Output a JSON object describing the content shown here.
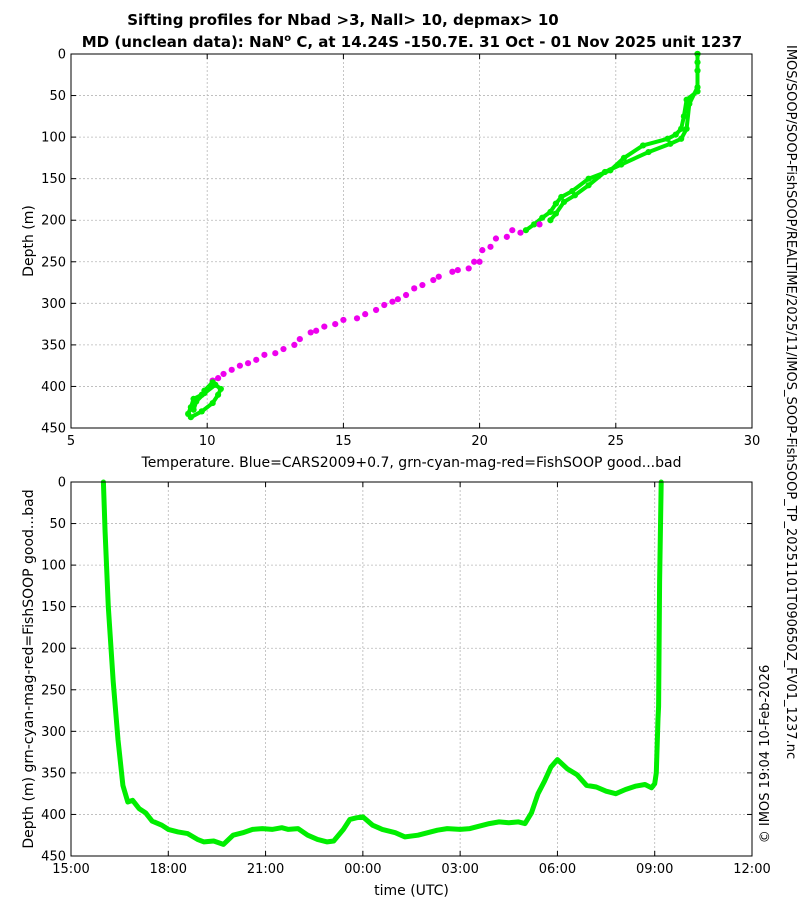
{
  "title_line1": "Sifting profiles for Nbad >3, Nall> 10, depmax> 10",
  "title_line2_pre": "MD (unclean data): NaN",
  "title_line2_sup": "o",
  "title_line2_post": " C, at 14.24S -150.7E. 31 Oct - 01 Nov 2025 unit 1237",
  "side_label_file": "IMOS_SOOP-FishSOOP_TP_20251101T090650Z_FV01_1237.nc",
  "side_label_path": "IMOS/SOOP/SOOP-FishSOOP/REALTIME/2025/11/",
  "side_label_credit": "© IMOS 19:04 10-Feb-2026",
  "colors": {
    "good": "#00ee00",
    "bad": "#ee00ee",
    "grid": "#b8b8b8",
    "axis": "#000000"
  },
  "chart_data": [
    {
      "type": "scatter",
      "xlabel": "Temperature. Blue=CARS2009+0.7, grn-cyan-mag-red=FishSOOP good...bad",
      "ylabel": "Depth (m)",
      "xlim": [
        5,
        30
      ],
      "ylim": [
        450,
        0
      ],
      "y_inverted": true,
      "xticks": [
        5,
        10,
        15,
        20,
        25,
        30
      ],
      "yticks": [
        0,
        50,
        100,
        150,
        200,
        250,
        300,
        350,
        400,
        450
      ],
      "grid": true,
      "series": [
        {
          "quality": "good",
          "color": "#00ee00",
          "points": [
            [
              28.0,
              0
            ],
            [
              28.0,
              20
            ],
            [
              28.0,
              45
            ],
            [
              27.6,
              55
            ],
            [
              27.5,
              75
            ],
            [
              27.4,
              90
            ],
            [
              27.2,
              97
            ],
            [
              26.9,
              102
            ],
            [
              26.0,
              110
            ],
            [
              25.3,
              125
            ],
            [
              24.8,
              140
            ],
            [
              24.0,
              150
            ],
            [
              23.4,
              165
            ],
            [
              23.0,
              172
            ],
            [
              22.8,
              180
            ],
            [
              22.6,
              190
            ],
            [
              22.3,
              197
            ],
            [
              22.0,
              205
            ],
            [
              21.7,
              212
            ]
          ]
        },
        {
          "quality": "good",
          "color": "#00ee00",
          "points": [
            [
              28.0,
              0
            ],
            [
              28.0,
              10
            ],
            [
              28.0,
              40
            ],
            [
              27.7,
              60
            ],
            [
              27.6,
              90
            ],
            [
              27.4,
              102
            ],
            [
              27.0,
              108
            ],
            [
              26.2,
              118
            ],
            [
              25.2,
              133
            ],
            [
              24.6,
              142
            ],
            [
              24.0,
              158
            ],
            [
              23.5,
              170
            ],
            [
              23.1,
              178
            ],
            [
              22.8,
              192
            ],
            [
              22.6,
              200
            ]
          ]
        },
        {
          "quality": "bad",
          "color": "#ee00ee",
          "points": [
            [
              22.2,
              205
            ],
            [
              21.5,
              215
            ],
            [
              21.0,
              220
            ],
            [
              20.4,
              232
            ],
            [
              20.0,
              250
            ],
            [
              19.6,
              258
            ],
            [
              19.0,
              262
            ],
            [
              18.3,
              272
            ],
            [
              17.6,
              282
            ],
            [
              17.0,
              295
            ],
            [
              16.5,
              302
            ],
            [
              15.8,
              313
            ],
            [
              15.0,
              320
            ],
            [
              14.3,
              328
            ],
            [
              13.8,
              335
            ],
            [
              13.2,
              350
            ],
            [
              12.5,
              360
            ],
            [
              11.8,
              368
            ],
            [
              11.2,
              375
            ],
            [
              10.6,
              385
            ],
            [
              10.2,
              393
            ],
            [
              21.2,
              212
            ],
            [
              20.6,
              222
            ],
            [
              20.1,
              236
            ],
            [
              19.8,
              250
            ],
            [
              19.2,
              260
            ],
            [
              18.5,
              268
            ],
            [
              17.9,
              278
            ],
            [
              17.3,
              290
            ],
            [
              16.8,
              298
            ],
            [
              16.2,
              308
            ],
            [
              15.5,
              318
            ],
            [
              14.7,
              325
            ],
            [
              14.0,
              333
            ],
            [
              13.4,
              343
            ],
            [
              12.8,
              355
            ],
            [
              12.1,
              362
            ],
            [
              11.5,
              372
            ],
            [
              10.9,
              380
            ],
            [
              10.4,
              390
            ]
          ]
        },
        {
          "quality": "good",
          "color": "#00ee00",
          "points": [
            [
              10.2,
              395
            ],
            [
              9.9,
              405
            ],
            [
              9.8,
              410
            ],
            [
              9.5,
              415
            ],
            [
              9.4,
              425
            ],
            [
              9.3,
              433
            ],
            [
              9.4,
              437
            ],
            [
              9.8,
              430
            ],
            [
              10.2,
              420
            ],
            [
              10.4,
              410
            ],
            [
              10.5,
              403
            ],
            [
              10.3,
              398
            ],
            [
              9.9,
              408
            ],
            [
              9.6,
              418
            ],
            [
              9.5,
              428
            ]
          ]
        }
      ]
    },
    {
      "type": "line",
      "xlabel": "time (UTC)",
      "ylabel": "Depth (m) grn-cyan-mag-red=FishSOOP good...bad",
      "xlim": [
        15,
        36
      ],
      "ylim": [
        450,
        0
      ],
      "y_inverted": true,
      "xticks": [
        15,
        18,
        21,
        24,
        27,
        30,
        33,
        36
      ],
      "xticklabels": [
        "15:00",
        "18:00",
        "21:00",
        "00:00",
        "03:00",
        "06:00",
        "09:00",
        "12:00"
      ],
      "yticks": [
        0,
        50,
        100,
        150,
        200,
        250,
        300,
        350,
        400,
        450
      ],
      "grid": true,
      "series": [
        {
          "quality": "good",
          "color": "#00ee00",
          "x": [
            16.0,
            16.05,
            16.15,
            16.3,
            16.45,
            16.6,
            16.75,
            16.9,
            17.1,
            17.3,
            17.5,
            17.8,
            18.0,
            18.3,
            18.6,
            18.9,
            19.1,
            19.4,
            19.7,
            20.0,
            20.3,
            20.6,
            20.9,
            21.2,
            21.5,
            21.7,
            22.0,
            22.3,
            22.6,
            22.9,
            23.1,
            23.4,
            23.6,
            23.8,
            24.0,
            24.3,
            24.6,
            25.0,
            25.3,
            25.7,
            26.0,
            26.3,
            26.6,
            27.0,
            27.3,
            27.6,
            27.9,
            28.2,
            28.5,
            28.8,
            29.0,
            29.2,
            29.4,
            29.6,
            29.8,
            30.0,
            30.3,
            30.6,
            30.9,
            31.2,
            31.5,
            31.8,
            32.1,
            32.4,
            32.7,
            32.9,
            33.0,
            33.05,
            33.1,
            33.12,
            33.15,
            33.2
          ],
          "y": [
            0,
            60,
            150,
            240,
            310,
            365,
            385,
            383,
            393,
            398,
            408,
            413,
            418,
            421,
            423,
            430,
            433,
            432,
            436,
            425,
            422,
            418,
            417,
            418,
            416,
            418,
            417,
            425,
            430,
            433,
            432,
            418,
            406,
            404,
            403,
            413,
            418,
            422,
            427,
            425,
            422,
            419,
            417,
            418,
            417,
            414,
            411,
            409,
            410,
            409,
            411,
            398,
            375,
            360,
            343,
            334,
            345,
            352,
            365,
            367,
            372,
            375,
            370,
            366,
            364,
            368,
            363,
            350,
            285,
            270,
            120,
            0
          ]
        }
      ]
    }
  ]
}
